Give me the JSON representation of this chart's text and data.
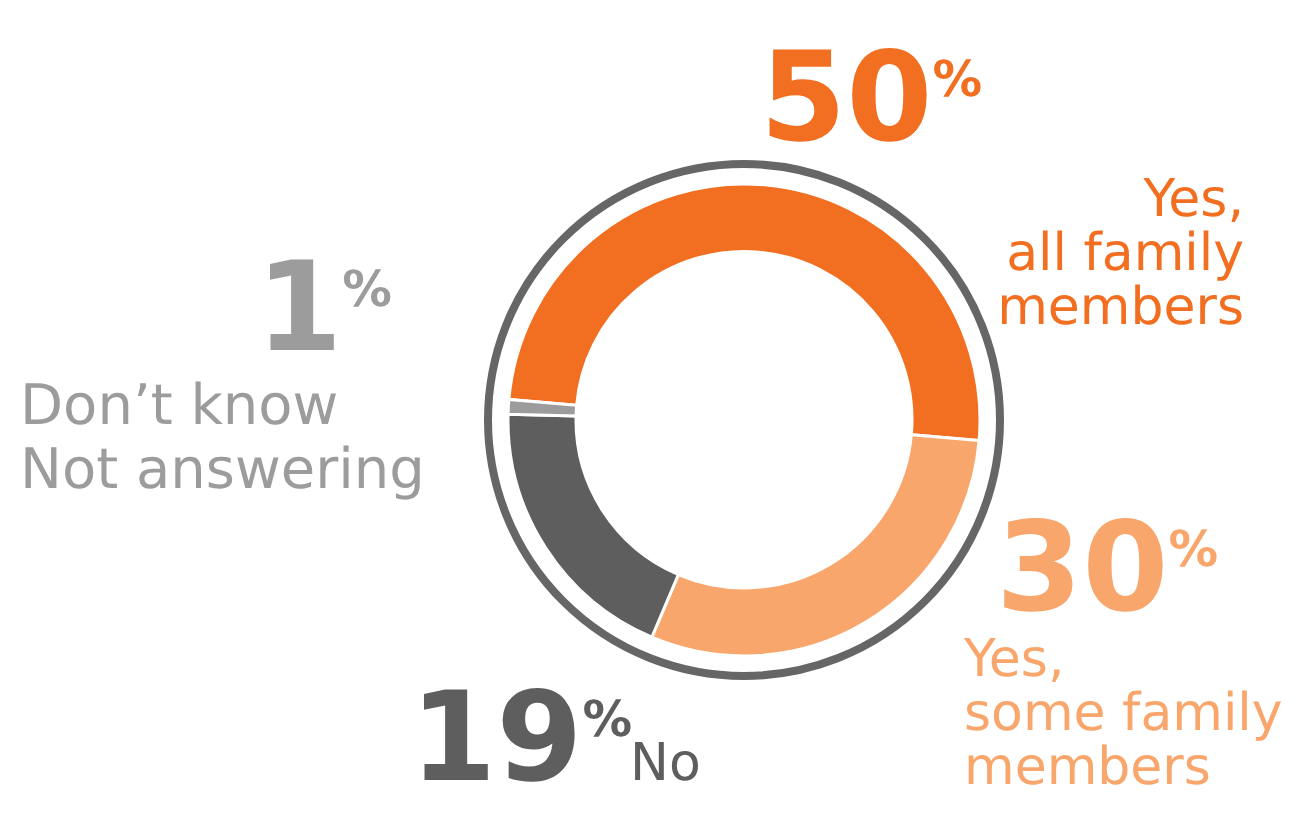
{
  "chart_data": {
    "type": "donut",
    "categories": [
      "Yes,\nall family\nmembers",
      "Yes,\nsome family\nmembers",
      "No",
      "Don’t know\nNot answering"
    ],
    "values": [
      50,
      30,
      19,
      1
    ],
    "colors": [
      "#f26f21",
      "#f9a66c",
      "#5e5e5e",
      "#9c9c9c"
    ],
    "value_labels": [
      "50$^{%}$",
      "30$^{%}$",
      "19$^{%}$",
      "1$^{%}$"
    ]
  }
}
